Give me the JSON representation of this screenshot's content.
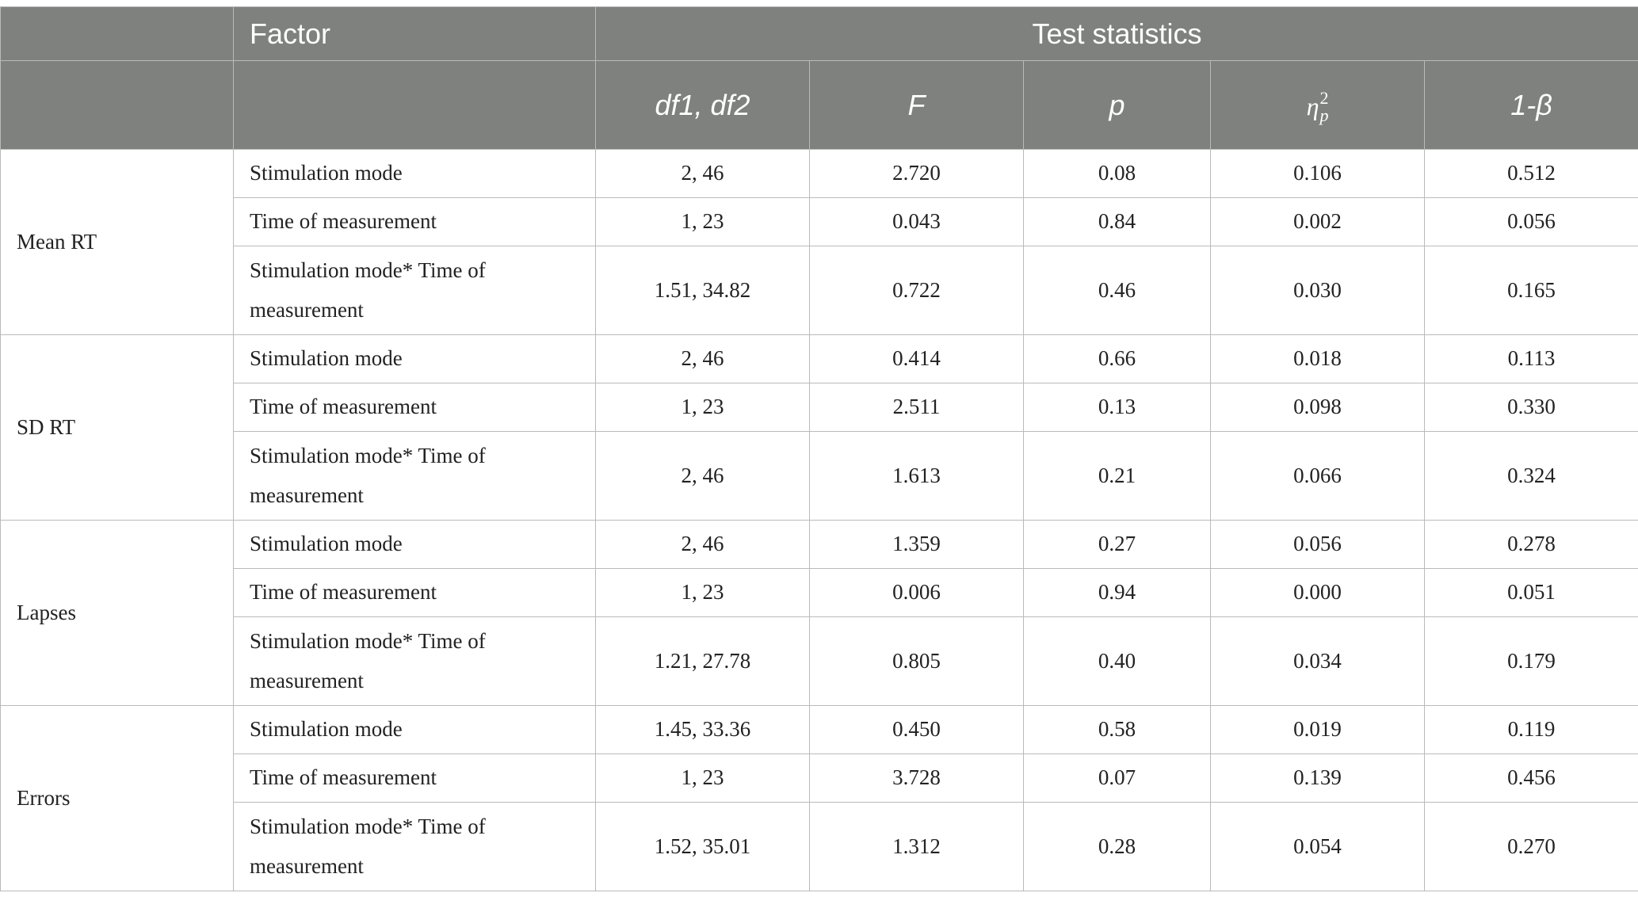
{
  "header": {
    "factor_label": "Factor",
    "test_statistics_label": "Test statistics",
    "columns": {
      "df": "df1, df2",
      "F": "F",
      "p": "p",
      "eta_base": "η",
      "eta_sup": "2",
      "eta_sub": "p",
      "power": "1-β"
    }
  },
  "groups": [
    {
      "name": "Mean RT",
      "rows": [
        {
          "factor": "Stimulation mode",
          "df": "2, 46",
          "F": "2.720",
          "p": "0.08",
          "eta": "0.106",
          "power": "0.512"
        },
        {
          "factor": "Time of measurement",
          "df": "1, 23",
          "F": "0.043",
          "p": "0.84",
          "eta": "0.002",
          "power": "0.056"
        },
        {
          "factor": "Stimulation mode* Time of measurement",
          "df": "1.51, 34.82",
          "F": "0.722",
          "p": "0.46",
          "eta": "0.030",
          "power": "0.165"
        }
      ]
    },
    {
      "name": "SD RT",
      "rows": [
        {
          "factor": "Stimulation mode",
          "df": "2, 46",
          "F": "0.414",
          "p": "0.66",
          "eta": "0.018",
          "power": "0.113"
        },
        {
          "factor": "Time of measurement",
          "df": "1, 23",
          "F": "2.511",
          "p": "0.13",
          "eta": "0.098",
          "power": "0.330"
        },
        {
          "factor": "Stimulation mode* Time of measurement",
          "df": "2, 46",
          "F": "1.613",
          "p": "0.21",
          "eta": "0.066",
          "power": "0.324"
        }
      ]
    },
    {
      "name": "Lapses",
      "rows": [
        {
          "factor": "Stimulation mode",
          "df": "2, 46",
          "F": "1.359",
          "p": "0.27",
          "eta": "0.056",
          "power": "0.278"
        },
        {
          "factor": "Time of measurement",
          "df": "1, 23",
          "F": "0.006",
          "p": "0.94",
          "eta": "0.000",
          "power": "0.051"
        },
        {
          "factor": "Stimulation mode* Time of measurement",
          "df": "1.21, 27.78",
          "F": "0.805",
          "p": "0.40",
          "eta": "0.034",
          "power": "0.179"
        }
      ]
    },
    {
      "name": "Errors",
      "rows": [
        {
          "factor": "Stimulation mode",
          "df": "1.45, 33.36",
          "F": "0.450",
          "p": "0.58",
          "eta": "0.019",
          "power": "0.119"
        },
        {
          "factor": "Time of measurement",
          "df": "1, 23",
          "F": "3.728",
          "p": "0.07",
          "eta": "0.139",
          "power": "0.456"
        },
        {
          "factor": "Stimulation mode* Time of measurement",
          "df": "1.52, 35.01",
          "F": "1.312",
          "p": "0.28",
          "eta": "0.054",
          "power": "0.270"
        }
      ]
    }
  ]
}
